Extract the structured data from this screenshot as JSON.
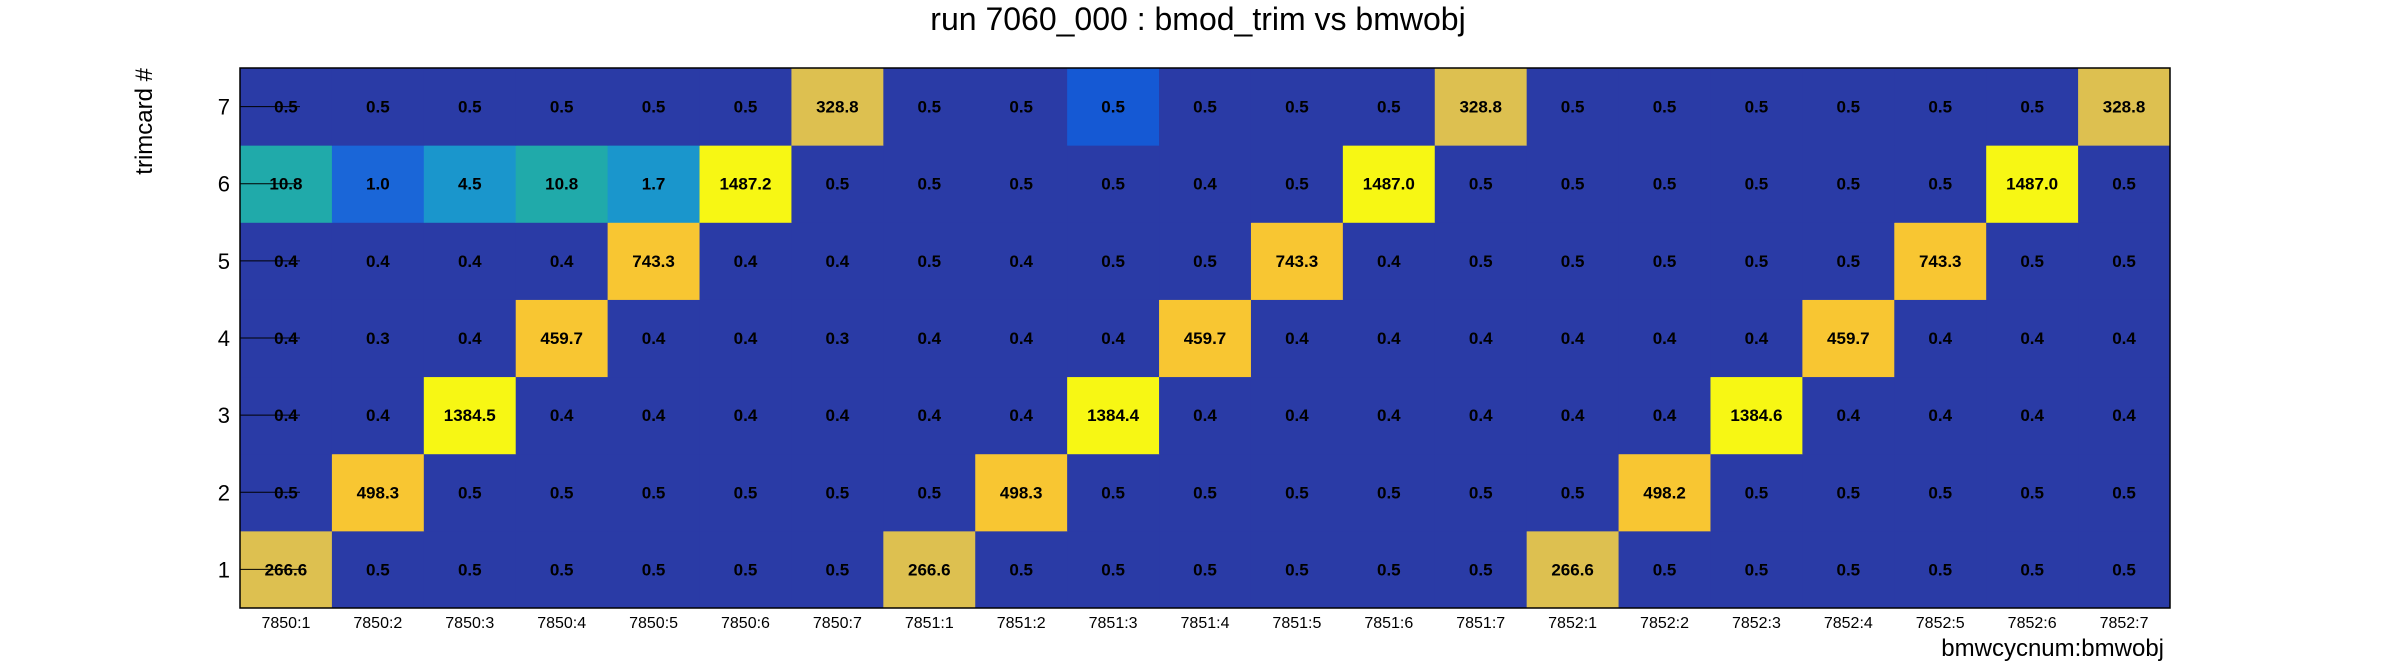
{
  "chart_data": {
    "type": "heatmap",
    "title": "run 7060_000 : bmod_trim vs bmwobj",
    "xlabel": "bmwcycnum:bmwobj",
    "ylabel": "trimcard #",
    "x_categories": [
      "7850:1",
      "7850:2",
      "7850:3",
      "7850:4",
      "7850:5",
      "7850:6",
      "7850:7",
      "7851:1",
      "7851:2",
      "7851:3",
      "7851:4",
      "7851:5",
      "7851:6",
      "7851:7",
      "7852:1",
      "7852:2",
      "7852:3",
      "7852:4",
      "7852:5",
      "7852:6",
      "7852:7"
    ],
    "y_categories": [
      "1",
      "2",
      "3",
      "4",
      "5",
      "6",
      "7"
    ],
    "values": [
      [
        "266.6",
        "0.5",
        "0.5",
        "0.5",
        "0.5",
        "0.5",
        "0.5",
        "266.6",
        "0.5",
        "0.5",
        "0.5",
        "0.5",
        "0.5",
        "0.5",
        "266.6",
        "0.5",
        "0.5",
        "0.5",
        "0.5",
        "0.5",
        "0.5"
      ],
      [
        "0.5",
        "498.3",
        "0.5",
        "0.5",
        "0.5",
        "0.5",
        "0.5",
        "0.5",
        "498.3",
        "0.5",
        "0.5",
        "0.5",
        "0.5",
        "0.5",
        "0.5",
        "498.2",
        "0.5",
        "0.5",
        "0.5",
        "0.5",
        "0.5"
      ],
      [
        "0.4",
        "0.4",
        "1384.5",
        "0.4",
        "0.4",
        "0.4",
        "0.4",
        "0.4",
        "0.4",
        "1384.4",
        "0.4",
        "0.4",
        "0.4",
        "0.4",
        "0.4",
        "0.4",
        "1384.6",
        "0.4",
        "0.4",
        "0.4",
        "0.4"
      ],
      [
        "0.4",
        "0.3",
        "0.4",
        "459.7",
        "0.4",
        "0.4",
        "0.3",
        "0.4",
        "0.4",
        "0.4",
        "459.7",
        "0.4",
        "0.4",
        "0.4",
        "0.4",
        "0.4",
        "0.4",
        "459.7",
        "0.4",
        "0.4",
        "0.4"
      ],
      [
        "0.4",
        "0.4",
        "0.4",
        "0.4",
        "743.3",
        "0.4",
        "0.4",
        "0.5",
        "0.4",
        "0.5",
        "0.5",
        "743.3",
        "0.4",
        "0.5",
        "0.5",
        "0.5",
        "0.5",
        "0.5",
        "743.3",
        "0.5",
        "0.5"
      ],
      [
        "10.8",
        "1.0",
        "4.5",
        "10.8",
        "1.7",
        "1487.2",
        "0.5",
        "0.5",
        "0.5",
        "0.5",
        "0.4",
        "0.5",
        "1487.0",
        "0.5",
        "0.5",
        "0.5",
        "0.5",
        "0.5",
        "0.5",
        "1487.0",
        "0.5"
      ],
      [
        "0.5",
        "0.5",
        "0.5",
        "0.5",
        "0.5",
        "0.5",
        "328.8",
        "0.5",
        "0.5",
        "0.5",
        "0.5",
        "0.5",
        "0.5",
        "328.8",
        "0.5",
        "0.5",
        "0.5",
        "0.5",
        "0.5",
        "0.5",
        "328.8"
      ]
    ],
    "highlight_color_overrides": [
      {
        "row": 6,
        "col": 9,
        "color": "#1559d4"
      }
    ],
    "colors": {
      "background_cell": "#2a3ba6",
      "low_mid": "#1a66d8",
      "mid": "#1a96cc",
      "teal": "#20aaaa",
      "gold": "#ddc050",
      "yellow_gold": "#f8c632",
      "bright_yellow": "#f7f714"
    }
  }
}
